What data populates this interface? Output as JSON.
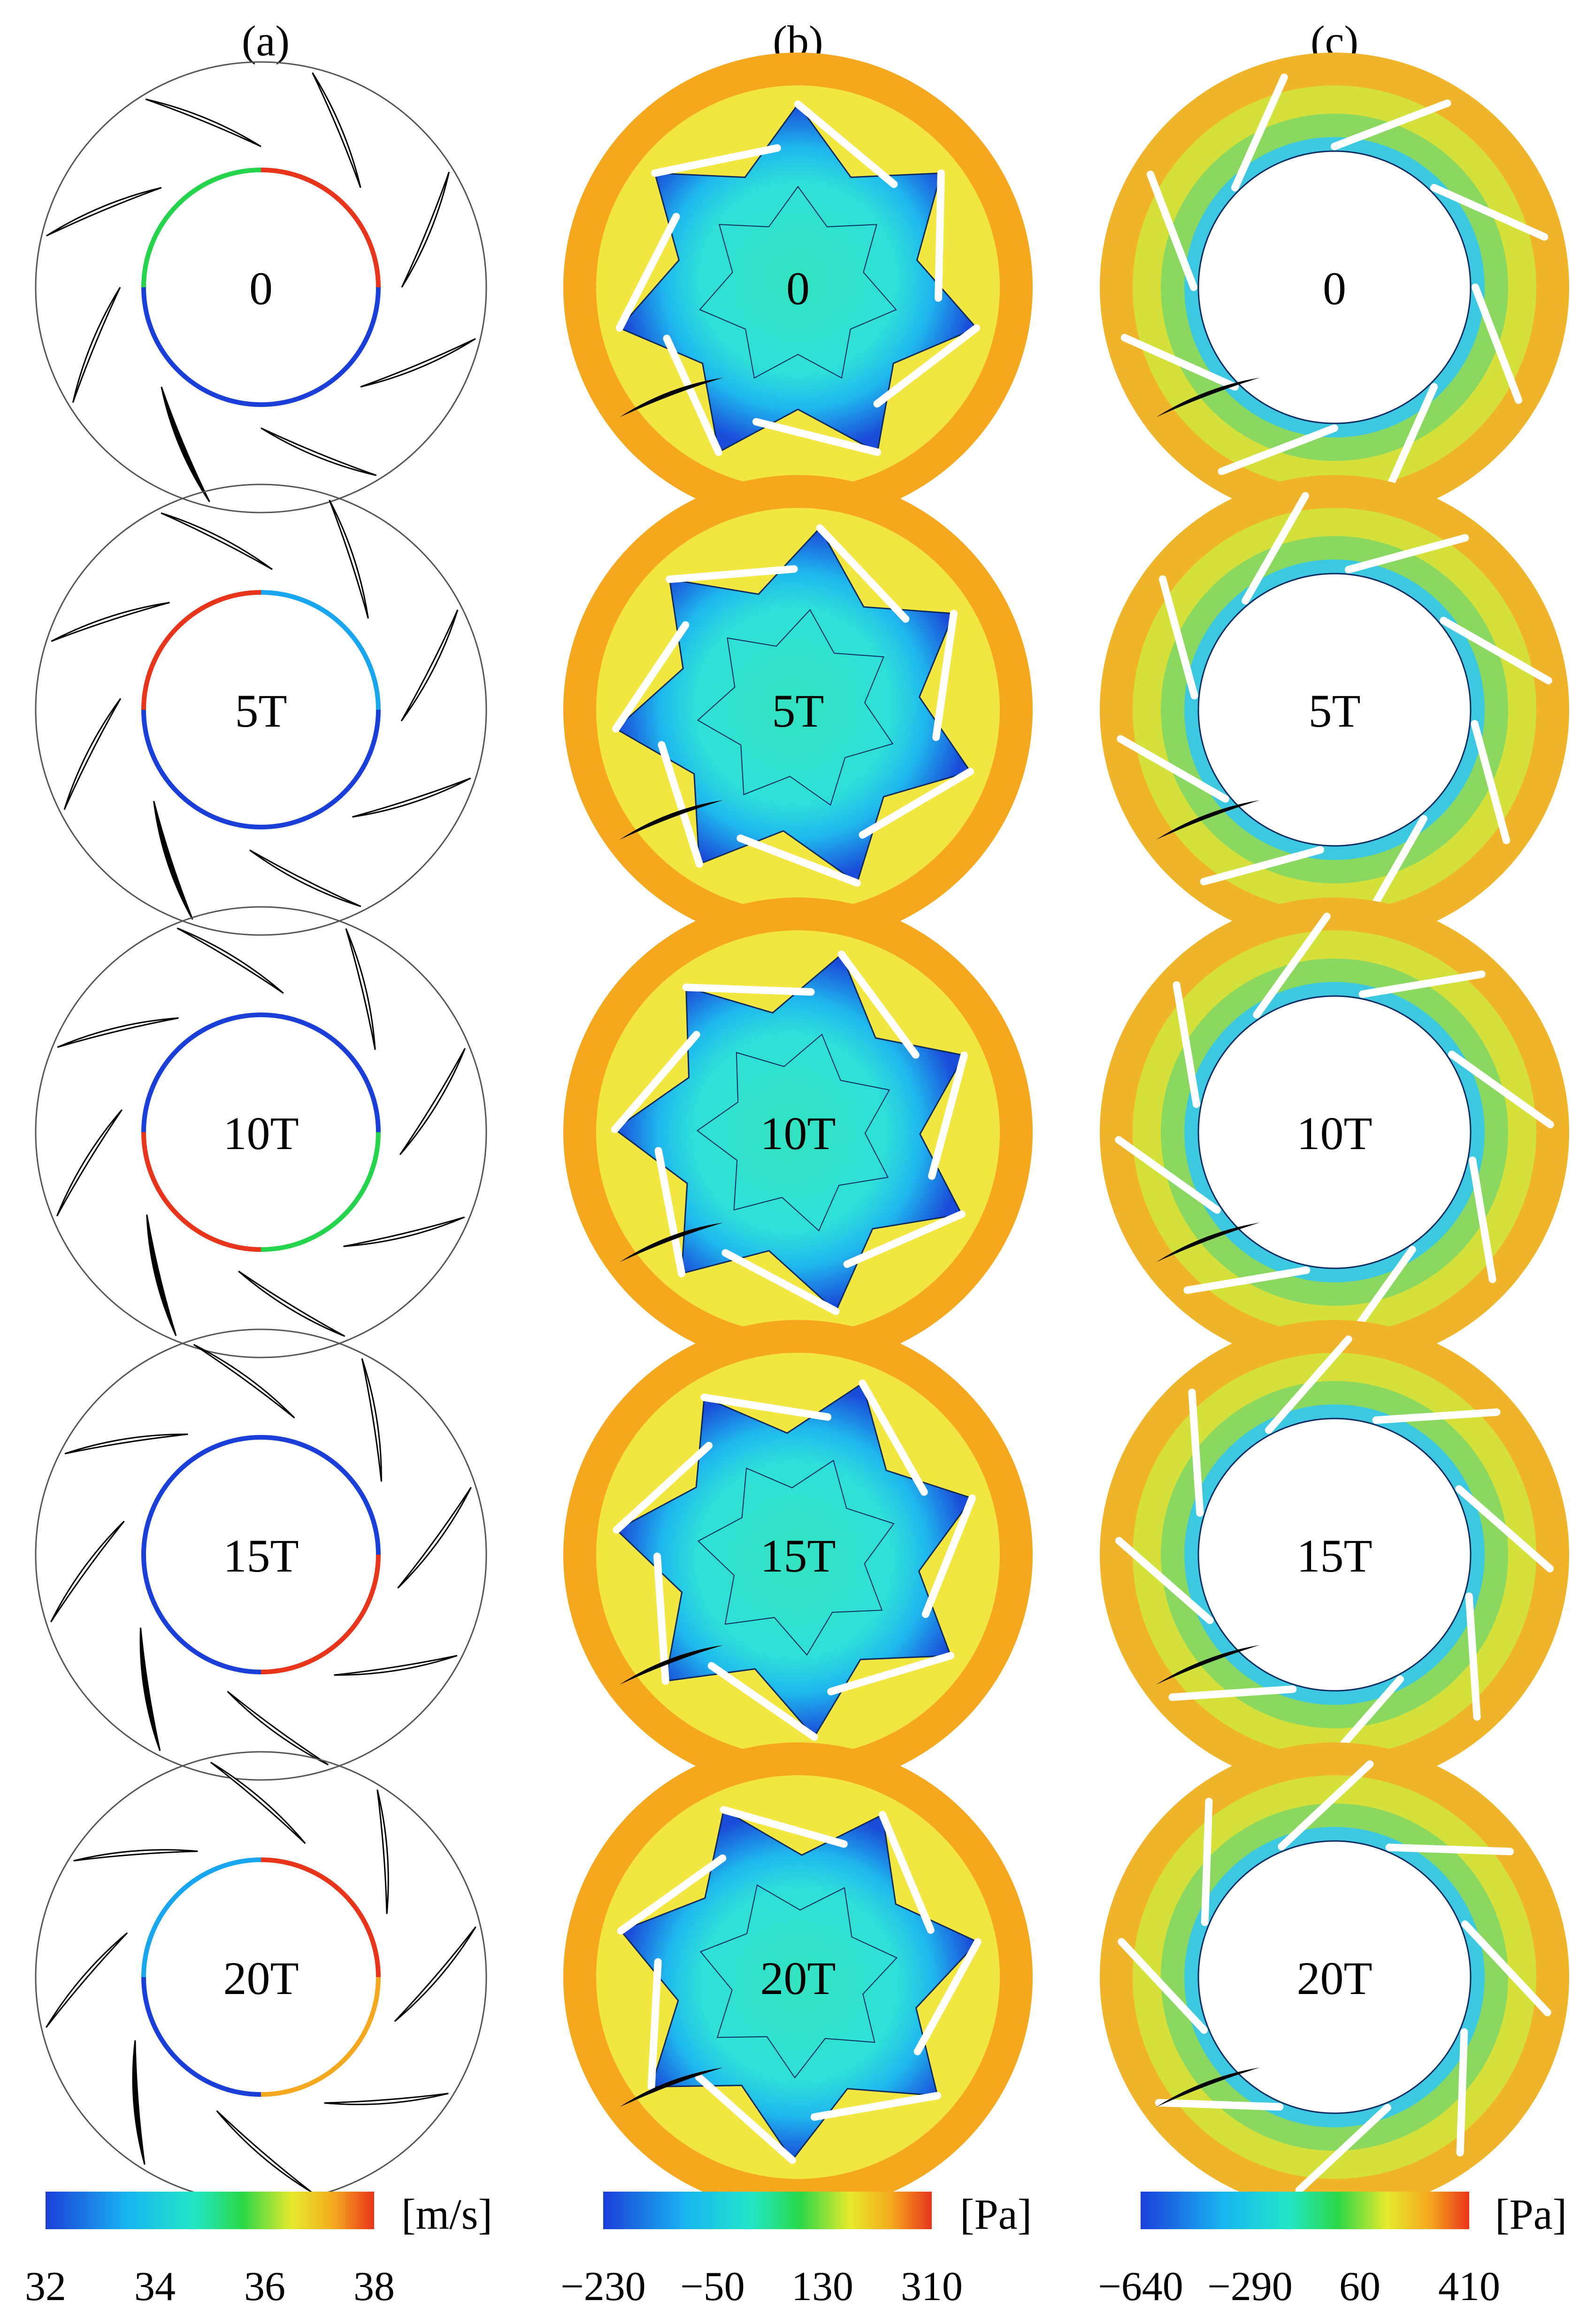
{
  "columns": [
    {
      "label": "(a)",
      "colorbar": {
        "unit": "[m/s]",
        "ticks": [
          "32",
          "34",
          "36",
          "38"
        ]
      }
    },
    {
      "label": "(b)",
      "colorbar": {
        "unit": "[Pa]",
        "ticks": [
          "−230",
          "−50",
          "130",
          "310"
        ]
      }
    },
    {
      "label": "(c)",
      "colorbar": {
        "unit": "[Pa]",
        "ticks": [
          "−640",
          "−290",
          "60",
          "410"
        ]
      }
    }
  ],
  "times": [
    "0",
    "5T",
    "10T",
    "15T",
    "20T"
  ],
  "colors": {
    "scale": [
      "#1a3fd8",
      "#19a6f0",
      "#22e6d2",
      "#24d44a",
      "#d8e62a",
      "#f2e640",
      "#f5a81e",
      "#e8341a"
    ],
    "blade": "#000000",
    "outline": "#555555"
  }
}
